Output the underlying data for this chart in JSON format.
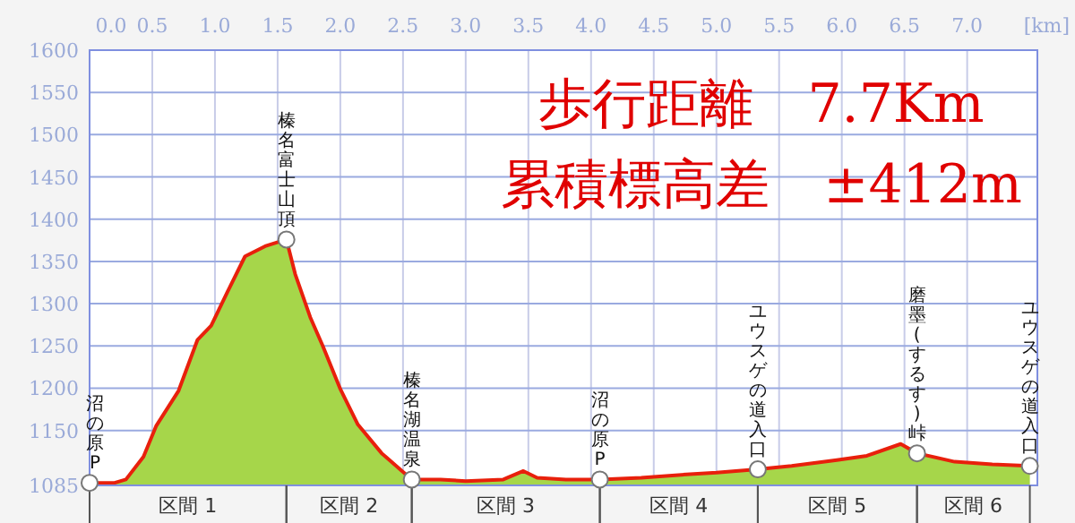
{
  "chart_data": {
    "type": "area",
    "title": "歩行距離　7.7Km",
    "subtitle": "累積標高差　±412m",
    "xlabel": "[km]",
    "x": [
      0,
      0.2,
      0.29,
      0.43,
      0.53,
      0.71,
      0.86,
      0.97,
      1.1,
      1.24,
      1.4,
      1.57,
      1.64,
      1.76,
      1.86,
      2.0,
      2.14,
      2.33,
      2.57,
      2.8,
      3.0,
      3.3,
      3.46,
      3.57,
      3.8,
      4.07,
      4.4,
      4.76,
      5.0,
      5.33,
      5.6,
      5.96,
      6.2,
      6.47,
      6.6,
      6.9,
      7.2,
      7.5
    ],
    "series": [
      {
        "color": "#a6d64a",
        "values": [
          1088,
          1088,
          1092,
          1119,
          1155,
          1197,
          1257,
          1274,
          1314,
          1356,
          1368,
          1376,
          1335,
          1284,
          1250,
          1199,
          1157,
          1123,
          1092,
          1092,
          1090,
          1092,
          1102,
          1094,
          1092,
          1092,
          1094,
          1098,
          1100,
          1104,
          1108,
          1115,
          1120,
          1134,
          1123,
          1113,
          1110,
          1108
        ]
      },
      {
        "type": "line",
        "color": "#e8200c",
        "values": [
          1088,
          1088,
          1092,
          1119,
          1155,
          1197,
          1257,
          1274,
          1314,
          1356,
          1368,
          1376,
          1335,
          1284,
          1250,
          1199,
          1157,
          1123,
          1092,
          1092,
          1090,
          1092,
          1102,
          1094,
          1092,
          1092,
          1094,
          1098,
          1100,
          1104,
          1108,
          1115,
          1120,
          1134,
          1123,
          1113,
          1110,
          1108
        ]
      }
    ],
    "xlim": [
      0,
      7.56
    ],
    "xticks": [
      {
        "value": 0,
        "label": "0.0"
      },
      0.5,
      {
        "value": 1,
        "label": "1.0"
      },
      1.5,
      {
        "value": 2,
        "label": "2.0"
      },
      2.5,
      {
        "value": 3,
        "label": "3.0"
      },
      3.5,
      {
        "value": 4,
        "label": "4.0"
      },
      4.5,
      {
        "value": 5,
        "label": "5.0"
      },
      5.5,
      {
        "value": 6,
        "label": "6.0"
      },
      6.5,
      {
        "value": 7,
        "label": "7.0"
      }
    ],
    "ylim": [
      1085,
      1600
    ],
    "yticks": [
      1085,
      1150,
      1200,
      1250,
      1300,
      1350,
      1400,
      1450,
      1500,
      1550,
      1600
    ],
    "grid": true,
    "annotations": [
      {
        "text": "沼の原P",
        "x": 0,
        "y": 1088
      },
      {
        "text": "榛名富士山頂",
        "x": 1.57,
        "y": 1376
      },
      {
        "text": "榛名湖温泉",
        "x": 2.57,
        "y": 1092
      },
      {
        "text": "沼の原P",
        "x": 4.07,
        "y": 1092
      },
      {
        "text": "ユウスゲの道入口",
        "x": 5.33,
        "y": 1104
      },
      {
        "text": "磨墨(するす)峠",
        "x": 6.6,
        "y": 1123
      },
      {
        "text": "ユウスゲの道入口",
        "x": 7.5,
        "y": 1108
      },
      "区間 1",
      "区間 2",
      "区間 3",
      "区間 4",
      "区間 5",
      "区間 6"
    ]
  }
}
